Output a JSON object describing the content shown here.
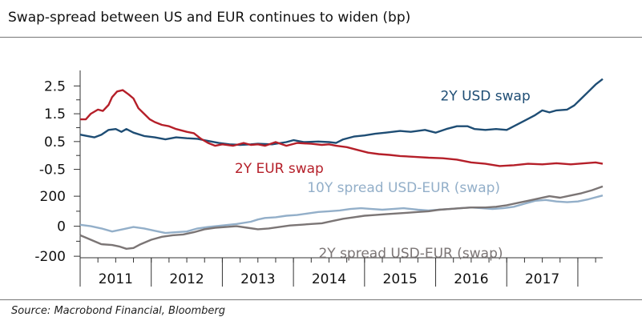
{
  "title": "Swap-spread between US and EUR continues to widen (bp)",
  "source": "Source: Macrobond Financial, Bloomberg",
  "chart_data": [
    {
      "type": "line",
      "panel": "top",
      "ylim": [
        -0.8,
        3.0
      ],
      "y_ticks": [
        2.5,
        1.5,
        0.5,
        -0.5
      ],
      "y_tick_labels": [
        "2.5",
        "1.5",
        "0.5",
        "-0.5"
      ],
      "x_range": [
        2010.5,
        2017.85
      ],
      "series": [
        {
          "name": "2Y USD swap",
          "color": "#1e4d74",
          "label_anchor": [
            2016.2,
            2.15
          ],
          "points": [
            [
              2010.5,
              0.75
            ],
            [
              2010.6,
              0.7
            ],
            [
              2010.7,
              0.65
            ],
            [
              2010.8,
              0.75
            ],
            [
              2010.9,
              0.92
            ],
            [
              2011.0,
              0.95
            ],
            [
              2011.08,
              0.85
            ],
            [
              2011.15,
              0.95
            ],
            [
              2011.25,
              0.82
            ],
            [
              2011.4,
              0.7
            ],
            [
              2011.55,
              0.65
            ],
            [
              2011.7,
              0.58
            ],
            [
              2011.85,
              0.65
            ],
            [
              2012.0,
              0.62
            ],
            [
              2012.15,
              0.6
            ],
            [
              2012.3,
              0.52
            ],
            [
              2012.45,
              0.45
            ],
            [
              2012.6,
              0.4
            ],
            [
              2012.75,
              0.38
            ],
            [
              2012.9,
              0.4
            ],
            [
              2013.0,
              0.42
            ],
            [
              2013.2,
              0.4
            ],
            [
              2013.4,
              0.48
            ],
            [
              2013.5,
              0.55
            ],
            [
              2013.65,
              0.48
            ],
            [
              2013.85,
              0.5
            ],
            [
              2014.0,
              0.48
            ],
            [
              2014.1,
              0.45
            ],
            [
              2014.2,
              0.58
            ],
            [
              2014.35,
              0.68
            ],
            [
              2014.5,
              0.72
            ],
            [
              2014.65,
              0.78
            ],
            [
              2014.8,
              0.82
            ],
            [
              2015.0,
              0.88
            ],
            [
              2015.15,
              0.85
            ],
            [
              2015.35,
              0.92
            ],
            [
              2015.5,
              0.82
            ],
            [
              2015.65,
              0.95
            ],
            [
              2015.8,
              1.05
            ],
            [
              2015.95,
              1.05
            ],
            [
              2016.05,
              0.95
            ],
            [
              2016.2,
              0.92
            ],
            [
              2016.35,
              0.95
            ],
            [
              2016.5,
              0.92
            ],
            [
              2016.6,
              1.05
            ],
            [
              2016.75,
              1.25
            ],
            [
              2016.9,
              1.45
            ],
            [
              2017.0,
              1.62
            ],
            [
              2017.1,
              1.55
            ],
            [
              2017.2,
              1.62
            ],
            [
              2017.35,
              1.65
            ],
            [
              2017.45,
              1.8
            ],
            [
              2017.55,
              2.05
            ],
            [
              2017.65,
              2.3
            ],
            [
              2017.75,
              2.55
            ],
            [
              2017.85,
              2.75
            ]
          ]
        },
        {
          "name": "2Y EUR swap",
          "color": "#b51f29",
          "label_anchor": [
            2013.3,
            -0.45
          ],
          "points": [
            [
              2010.5,
              1.3
            ],
            [
              2010.58,
              1.3
            ],
            [
              2010.65,
              1.5
            ],
            [
              2010.75,
              1.65
            ],
            [
              2010.82,
              1.6
            ],
            [
              2010.9,
              1.82
            ],
            [
              2010.95,
              2.1
            ],
            [
              2011.02,
              2.3
            ],
            [
              2011.1,
              2.35
            ],
            [
              2011.18,
              2.2
            ],
            [
              2011.25,
              2.05
            ],
            [
              2011.32,
              1.7
            ],
            [
              2011.4,
              1.5
            ],
            [
              2011.48,
              1.3
            ],
            [
              2011.55,
              1.2
            ],
            [
              2011.65,
              1.1
            ],
            [
              2011.75,
              1.05
            ],
            [
              2011.85,
              0.95
            ],
            [
              2012.0,
              0.85
            ],
            [
              2012.1,
              0.8
            ],
            [
              2012.2,
              0.6
            ],
            [
              2012.3,
              0.45
            ],
            [
              2012.4,
              0.35
            ],
            [
              2012.5,
              0.4
            ],
            [
              2012.65,
              0.35
            ],
            [
              2012.8,
              0.45
            ],
            [
              2012.9,
              0.38
            ],
            [
              2013.0,
              0.4
            ],
            [
              2013.1,
              0.35
            ],
            [
              2013.25,
              0.48
            ],
            [
              2013.4,
              0.35
            ],
            [
              2013.55,
              0.45
            ],
            [
              2013.75,
              0.42
            ],
            [
              2013.9,
              0.38
            ],
            [
              2014.0,
              0.4
            ],
            [
              2014.1,
              0.35
            ],
            [
              2014.25,
              0.3
            ],
            [
              2014.4,
              0.2
            ],
            [
              2014.55,
              0.1
            ],
            [
              2014.7,
              0.05
            ],
            [
              2014.85,
              0.02
            ],
            [
              2015.0,
              -0.02
            ],
            [
              2015.2,
              -0.05
            ],
            [
              2015.4,
              -0.08
            ],
            [
              2015.6,
              -0.1
            ],
            [
              2015.8,
              -0.15
            ],
            [
              2016.0,
              -0.25
            ],
            [
              2016.2,
              -0.3
            ],
            [
              2016.4,
              -0.38
            ],
            [
              2016.6,
              -0.35
            ],
            [
              2016.8,
              -0.3
            ],
            [
              2017.0,
              -0.32
            ],
            [
              2017.2,
              -0.28
            ],
            [
              2017.4,
              -0.32
            ],
            [
              2017.6,
              -0.28
            ],
            [
              2017.75,
              -0.25
            ],
            [
              2017.85,
              -0.3
            ]
          ]
        }
      ]
    },
    {
      "type": "line",
      "panel": "bottom",
      "ylim": [
        -210,
        270
      ],
      "y_ticks": [
        200,
        0,
        -200
      ],
      "y_tick_labels": [
        "200",
        "0",
        "-200"
      ],
      "x_range": [
        2010.5,
        2017.85
      ],
      "series": [
        {
          "name": "10Y spread USD-EUR (swap)",
          "color": "#93afc9",
          "label_anchor": [
            2015.05,
            260
          ],
          "points": [
            [
              2010.5,
              10
            ],
            [
              2010.65,
              0
            ],
            [
              2010.8,
              -15
            ],
            [
              2010.95,
              -35
            ],
            [
              2011.1,
              -20
            ],
            [
              2011.25,
              -5
            ],
            [
              2011.4,
              -15
            ],
            [
              2011.55,
              -30
            ],
            [
              2011.7,
              -45
            ],
            [
              2011.85,
              -40
            ],
            [
              2012.0,
              -35
            ],
            [
              2012.15,
              -15
            ],
            [
              2012.3,
              -5
            ],
            [
              2012.5,
              5
            ],
            [
              2012.7,
              15
            ],
            [
              2012.9,
              30
            ],
            [
              2013.0,
              45
            ],
            [
              2013.1,
              55
            ],
            [
              2013.25,
              60
            ],
            [
              2013.4,
              70
            ],
            [
              2013.55,
              75
            ],
            [
              2013.7,
              85
            ],
            [
              2013.85,
              95
            ],
            [
              2014.0,
              100
            ],
            [
              2014.15,
              105
            ],
            [
              2014.3,
              115
            ],
            [
              2014.45,
              120
            ],
            [
              2014.6,
              115
            ],
            [
              2014.75,
              110
            ],
            [
              2014.9,
              115
            ],
            [
              2015.05,
              120
            ],
            [
              2015.25,
              110
            ],
            [
              2015.4,
              105
            ],
            [
              2015.55,
              110
            ],
            [
              2015.7,
              115
            ],
            [
              2015.85,
              120
            ],
            [
              2016.0,
              125
            ],
            [
              2016.15,
              120
            ],
            [
              2016.3,
              115
            ],
            [
              2016.45,
              120
            ],
            [
              2016.6,
              130
            ],
            [
              2016.75,
              150
            ],
            [
              2016.9,
              170
            ],
            [
              2017.05,
              175
            ],
            [
              2017.2,
              165
            ],
            [
              2017.35,
              160
            ],
            [
              2017.5,
              165
            ],
            [
              2017.65,
              180
            ],
            [
              2017.85,
              205
            ]
          ]
        },
        {
          "name": "2Y spread USD-EUR (swap)",
          "color": "#7b7575",
          "label_anchor": [
            2015.15,
            -178
          ],
          "points": [
            [
              2010.5,
              -60
            ],
            [
              2010.6,
              -80
            ],
            [
              2010.7,
              -100
            ],
            [
              2010.8,
              -120
            ],
            [
              2010.95,
              -125
            ],
            [
              2011.05,
              -135
            ],
            [
              2011.15,
              -150
            ],
            [
              2011.25,
              -145
            ],
            [
              2011.35,
              -120
            ],
            [
              2011.5,
              -90
            ],
            [
              2011.65,
              -70
            ],
            [
              2011.8,
              -60
            ],
            [
              2011.95,
              -55
            ],
            [
              2012.1,
              -40
            ],
            [
              2012.25,
              -20
            ],
            [
              2012.4,
              -10
            ],
            [
              2012.55,
              -5
            ],
            [
              2012.7,
              0
            ],
            [
              2012.85,
              -10
            ],
            [
              2013.0,
              -20
            ],
            [
              2013.15,
              -15
            ],
            [
              2013.3,
              -5
            ],
            [
              2013.45,
              5
            ],
            [
              2013.6,
              10
            ],
            [
              2013.75,
              15
            ],
            [
              2013.9,
              20
            ],
            [
              2014.05,
              35
            ],
            [
              2014.2,
              50
            ],
            [
              2014.35,
              60
            ],
            [
              2014.5,
              70
            ],
            [
              2014.65,
              75
            ],
            [
              2014.8,
              80
            ],
            [
              2014.95,
              85
            ],
            [
              2015.1,
              90
            ],
            [
              2015.25,
              95
            ],
            [
              2015.4,
              100
            ],
            [
              2015.55,
              110
            ],
            [
              2015.7,
              115
            ],
            [
              2015.85,
              120
            ],
            [
              2016.0,
              125
            ],
            [
              2016.2,
              125
            ],
            [
              2016.35,
              130
            ],
            [
              2016.5,
              140
            ],
            [
              2016.65,
              155
            ],
            [
              2016.8,
              170
            ],
            [
              2016.95,
              185
            ],
            [
              2017.1,
              200
            ],
            [
              2017.25,
              190
            ],
            [
              2017.4,
              205
            ],
            [
              2017.55,
              220
            ],
            [
              2017.7,
              240
            ],
            [
              2017.85,
              265
            ]
          ]
        }
      ]
    }
  ],
  "x_axis": {
    "year_labels": [
      "2011",
      "2012",
      "2013",
      "2014",
      "2015",
      "2016",
      "2017"
    ],
    "year_label_x": [
      2011.0,
      2012.0,
      2013.0,
      2014.0,
      2015.0,
      2016.0,
      2017.0
    ],
    "boundaries": [
      2010.5,
      2011.5,
      2012.5,
      2013.5,
      2014.5,
      2015.5,
      2016.5,
      2017.5
    ]
  }
}
